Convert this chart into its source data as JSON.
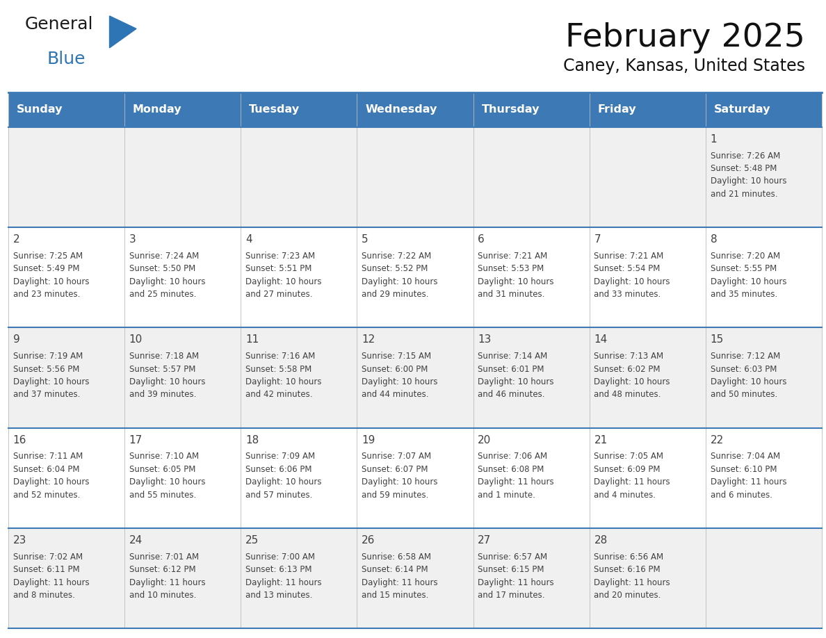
{
  "title": "February 2025",
  "subtitle": "Caney, Kansas, United States",
  "header_color": "#3D7AB5",
  "header_text_color": "#FFFFFF",
  "day_names": [
    "Sunday",
    "Monday",
    "Tuesday",
    "Wednesday",
    "Thursday",
    "Friday",
    "Saturday"
  ],
  "bg_color": "#FFFFFF",
  "row_colors": [
    "#F0F0F0",
    "#FFFFFF",
    "#F0F0F0",
    "#FFFFFF",
    "#F0F0F0"
  ],
  "border_color": "#3D7AB5",
  "cell_border_color": "#BBBBBB",
  "text_color": "#404040",
  "days": [
    {
      "day": 1,
      "col": 6,
      "row": 0,
      "sunrise": "7:26 AM",
      "sunset": "5:48 PM",
      "daylight": "10 hours and 21 minutes."
    },
    {
      "day": 2,
      "col": 0,
      "row": 1,
      "sunrise": "7:25 AM",
      "sunset": "5:49 PM",
      "daylight": "10 hours and 23 minutes."
    },
    {
      "day": 3,
      "col": 1,
      "row": 1,
      "sunrise": "7:24 AM",
      "sunset": "5:50 PM",
      "daylight": "10 hours and 25 minutes."
    },
    {
      "day": 4,
      "col": 2,
      "row": 1,
      "sunrise": "7:23 AM",
      "sunset": "5:51 PM",
      "daylight": "10 hours and 27 minutes."
    },
    {
      "day": 5,
      "col": 3,
      "row": 1,
      "sunrise": "7:22 AM",
      "sunset": "5:52 PM",
      "daylight": "10 hours and 29 minutes."
    },
    {
      "day": 6,
      "col": 4,
      "row": 1,
      "sunrise": "7:21 AM",
      "sunset": "5:53 PM",
      "daylight": "10 hours and 31 minutes."
    },
    {
      "day": 7,
      "col": 5,
      "row": 1,
      "sunrise": "7:21 AM",
      "sunset": "5:54 PM",
      "daylight": "10 hours and 33 minutes."
    },
    {
      "day": 8,
      "col": 6,
      "row": 1,
      "sunrise": "7:20 AM",
      "sunset": "5:55 PM",
      "daylight": "10 hours and 35 minutes."
    },
    {
      "day": 9,
      "col": 0,
      "row": 2,
      "sunrise": "7:19 AM",
      "sunset": "5:56 PM",
      "daylight": "10 hours and 37 minutes."
    },
    {
      "day": 10,
      "col": 1,
      "row": 2,
      "sunrise": "7:18 AM",
      "sunset": "5:57 PM",
      "daylight": "10 hours and 39 minutes."
    },
    {
      "day": 11,
      "col": 2,
      "row": 2,
      "sunrise": "7:16 AM",
      "sunset": "5:58 PM",
      "daylight": "10 hours and 42 minutes."
    },
    {
      "day": 12,
      "col": 3,
      "row": 2,
      "sunrise": "7:15 AM",
      "sunset": "6:00 PM",
      "daylight": "10 hours and 44 minutes."
    },
    {
      "day": 13,
      "col": 4,
      "row": 2,
      "sunrise": "7:14 AM",
      "sunset": "6:01 PM",
      "daylight": "10 hours and 46 minutes."
    },
    {
      "day": 14,
      "col": 5,
      "row": 2,
      "sunrise": "7:13 AM",
      "sunset": "6:02 PM",
      "daylight": "10 hours and 48 minutes."
    },
    {
      "day": 15,
      "col": 6,
      "row": 2,
      "sunrise": "7:12 AM",
      "sunset": "6:03 PM",
      "daylight": "10 hours and 50 minutes."
    },
    {
      "day": 16,
      "col": 0,
      "row": 3,
      "sunrise": "7:11 AM",
      "sunset": "6:04 PM",
      "daylight": "10 hours and 52 minutes."
    },
    {
      "day": 17,
      "col": 1,
      "row": 3,
      "sunrise": "7:10 AM",
      "sunset": "6:05 PM",
      "daylight": "10 hours and 55 minutes."
    },
    {
      "day": 18,
      "col": 2,
      "row": 3,
      "sunrise": "7:09 AM",
      "sunset": "6:06 PM",
      "daylight": "10 hours and 57 minutes."
    },
    {
      "day": 19,
      "col": 3,
      "row": 3,
      "sunrise": "7:07 AM",
      "sunset": "6:07 PM",
      "daylight": "10 hours and 59 minutes."
    },
    {
      "day": 20,
      "col": 4,
      "row": 3,
      "sunrise": "7:06 AM",
      "sunset": "6:08 PM",
      "daylight": "11 hours and 1 minute."
    },
    {
      "day": 21,
      "col": 5,
      "row": 3,
      "sunrise": "7:05 AM",
      "sunset": "6:09 PM",
      "daylight": "11 hours and 4 minutes."
    },
    {
      "day": 22,
      "col": 6,
      "row": 3,
      "sunrise": "7:04 AM",
      "sunset": "6:10 PM",
      "daylight": "11 hours and 6 minutes."
    },
    {
      "day": 23,
      "col": 0,
      "row": 4,
      "sunrise": "7:02 AM",
      "sunset": "6:11 PM",
      "daylight": "11 hours and 8 minutes."
    },
    {
      "day": 24,
      "col": 1,
      "row": 4,
      "sunrise": "7:01 AM",
      "sunset": "6:12 PM",
      "daylight": "11 hours and 10 minutes."
    },
    {
      "day": 25,
      "col": 2,
      "row": 4,
      "sunrise": "7:00 AM",
      "sunset": "6:13 PM",
      "daylight": "11 hours and 13 minutes."
    },
    {
      "day": 26,
      "col": 3,
      "row": 4,
      "sunrise": "6:58 AM",
      "sunset": "6:14 PM",
      "daylight": "11 hours and 15 minutes."
    },
    {
      "day": 27,
      "col": 4,
      "row": 4,
      "sunrise": "6:57 AM",
      "sunset": "6:15 PM",
      "daylight": "11 hours and 17 minutes."
    },
    {
      "day": 28,
      "col": 5,
      "row": 4,
      "sunrise": "6:56 AM",
      "sunset": "6:16 PM",
      "daylight": "11 hours and 20 minutes."
    }
  ],
  "num_rows": 5,
  "logo_color_general": "#1a1a1a",
  "logo_color_blue": "#2E75B6",
  "logo_triangle_color": "#2E75B6"
}
